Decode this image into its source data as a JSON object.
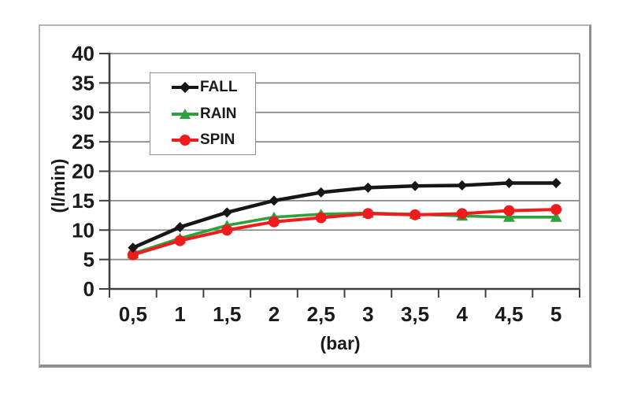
{
  "page": {
    "background": "#ffffff"
  },
  "chart_data": {
    "type": "line",
    "title": "",
    "xlabel": "(bar)",
    "ylabel": "(l/min)",
    "categories": [
      "0,5",
      "1",
      "1,5",
      "2",
      "2,5",
      "3",
      "3,5",
      "4",
      "4,5",
      "5"
    ],
    "x_values": [
      0.5,
      1,
      1.5,
      2,
      2.5,
      3,
      3.5,
      4,
      4.5,
      5
    ],
    "ylim": [
      0,
      40
    ],
    "yticks": [
      0,
      5,
      10,
      15,
      20,
      25,
      30,
      35,
      40
    ],
    "grid": "horizontal",
    "legend_position": "inside-top-left",
    "colors": {
      "grid": "#878787",
      "axis": "#3f3f3f",
      "text": "#1a1a1a",
      "plot_border": "#8a8a8a"
    },
    "series": [
      {
        "name": "FALL",
        "color": "#161616",
        "marker": "diamond",
        "line_width": 4.5,
        "values": [
          7,
          10.5,
          13,
          15,
          16.4,
          17.2,
          17.5,
          17.6,
          18,
          18
        ]
      },
      {
        "name": "RAIN",
        "color": "#2ea33c",
        "marker": "triangle",
        "line_width": 3.6,
        "values": [
          6,
          8.6,
          10.8,
          12.2,
          12.7,
          12.9,
          12.7,
          12.4,
          12.2,
          12.2
        ]
      },
      {
        "name": "SPIN",
        "color": "#ee1c1c",
        "marker": "circle",
        "line_width": 4,
        "values": [
          5.8,
          8.2,
          10,
          11.4,
          12.1,
          12.8,
          12.6,
          12.8,
          13.3,
          13.5
        ]
      }
    ]
  }
}
